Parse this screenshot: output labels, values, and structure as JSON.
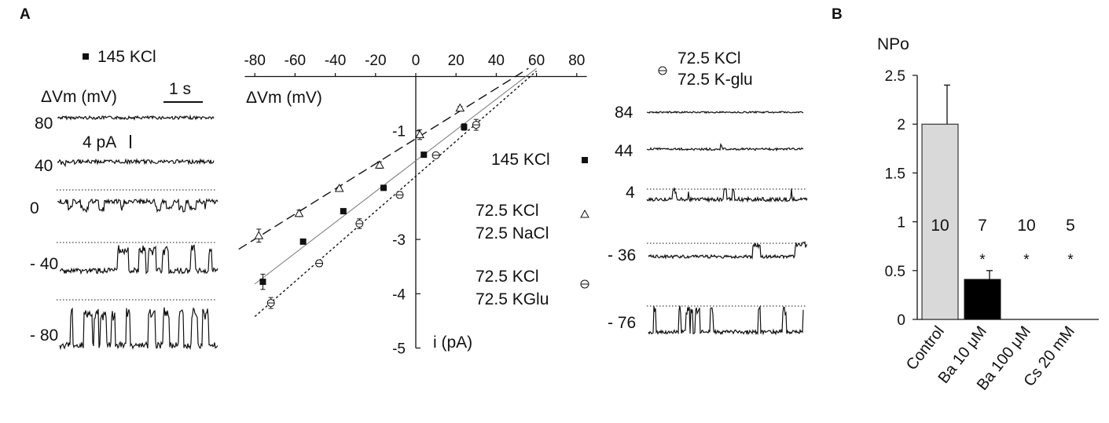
{
  "panel_a": {
    "letter": "A",
    "left_traces": {
      "condition_label": "145 KCl",
      "axis_label": "ΔVm (mV)",
      "time_scale": "1 s",
      "current_scale": "4 pA",
      "voltages": [
        "80",
        "40",
        "0",
        "- 40",
        "- 80"
      ]
    },
    "right_traces": {
      "condition_line1": "72.5 KCl",
      "condition_line2": "72.5 K-glu",
      "voltages": [
        "84",
        "44",
        "4",
        "- 36",
        "- 76"
      ]
    },
    "legend": [
      {
        "line1": "145 KCl",
        "line2": "",
        "marker": "filled-square"
      },
      {
        "line1": "72.5 KCl",
        "line2": "72.5 NaCl",
        "marker": "open-triangle"
      },
      {
        "line1": "72.5 KCl",
        "line2": "72.5 KGlu",
        "marker": "open-circle-bar"
      }
    ]
  },
  "panel_b": {
    "letter": "B"
  },
  "chart_data": [
    {
      "type": "scatter",
      "title": "",
      "xlabel": "ΔVm (mV)",
      "ylabel": "i (pA)",
      "xlim": [
        -80,
        80
      ],
      "ylim": [
        -5,
        0
      ],
      "x_ticks": [
        "-80",
        "-60",
        "-40",
        "-20",
        "0",
        "20",
        "40",
        "60",
        "80"
      ],
      "y_ticks": [
        "-1",
        "-3",
        "-4",
        "-5"
      ],
      "grid": false,
      "series": [
        {
          "name": "145 KCl",
          "marker": "filled-square",
          "line": "solid",
          "x": [
            -76,
            -56,
            -36,
            -16,
            4,
            24
          ],
          "y": [
            -3.78,
            -3.04,
            -2.48,
            -2.05,
            -1.44,
            -0.93
          ],
          "err": [
            0.14,
            0.04,
            0.04,
            0.04,
            0.04,
            0.06
          ],
          "fit": {
            "x": [
              -80,
              60
            ],
            "y": [
              -3.82,
              0.15
            ]
          }
        },
        {
          "name": "72.5 KCl 72.5 NaCl",
          "marker": "open-triangle",
          "line": "long-dash",
          "x": [
            -78,
            -58,
            -38,
            -18,
            2,
            22
          ],
          "y": [
            -2.93,
            -2.52,
            -2.06,
            -1.63,
            -1.07,
            -0.58
          ],
          "err": [
            0.12,
            0.06,
            0.03,
            0.06,
            0.09,
            0.03
          ],
          "fit": {
            "x": [
              -88,
              56
            ],
            "y": [
              -3.18,
              0.15
            ]
          }
        },
        {
          "name": "72.5 KCl 72.5 KGlu",
          "marker": "open-circle-bar",
          "line": "short-dash",
          "x": [
            -72,
            -48,
            -28,
            -8,
            10,
            30
          ],
          "y": [
            -4.17,
            -3.44,
            -2.71,
            -2.18,
            -1.45,
            -0.89
          ],
          "err": [
            0.1,
            0.06,
            0.09,
            0.06,
            0.04,
            0.1
          ],
          "fit": {
            "x": [
              -80,
              60
            ],
            "y": [
              -4.42,
              0.1
            ]
          }
        }
      ]
    },
    {
      "type": "bar",
      "title": "",
      "ylabel": "NPo",
      "ylim": [
        0,
        2.5
      ],
      "y_ticks": [
        "0",
        "0.5",
        "1",
        "1.5",
        "2",
        "2.5"
      ],
      "categories": [
        "Control",
        "Ba 10 μM",
        "Ba 100 μM",
        "Cs 20 mM"
      ],
      "values": [
        2.0,
        0.41,
        0,
        0
      ],
      "errors": [
        0.4,
        0.09,
        0,
        0
      ],
      "bar_colors": [
        "#d9d9d9",
        "#000000",
        "#000000",
        "#000000"
      ],
      "n_labels": [
        "10",
        "7",
        "10",
        "5"
      ],
      "significance": [
        "",
        "*",
        "*",
        "*"
      ]
    }
  ]
}
